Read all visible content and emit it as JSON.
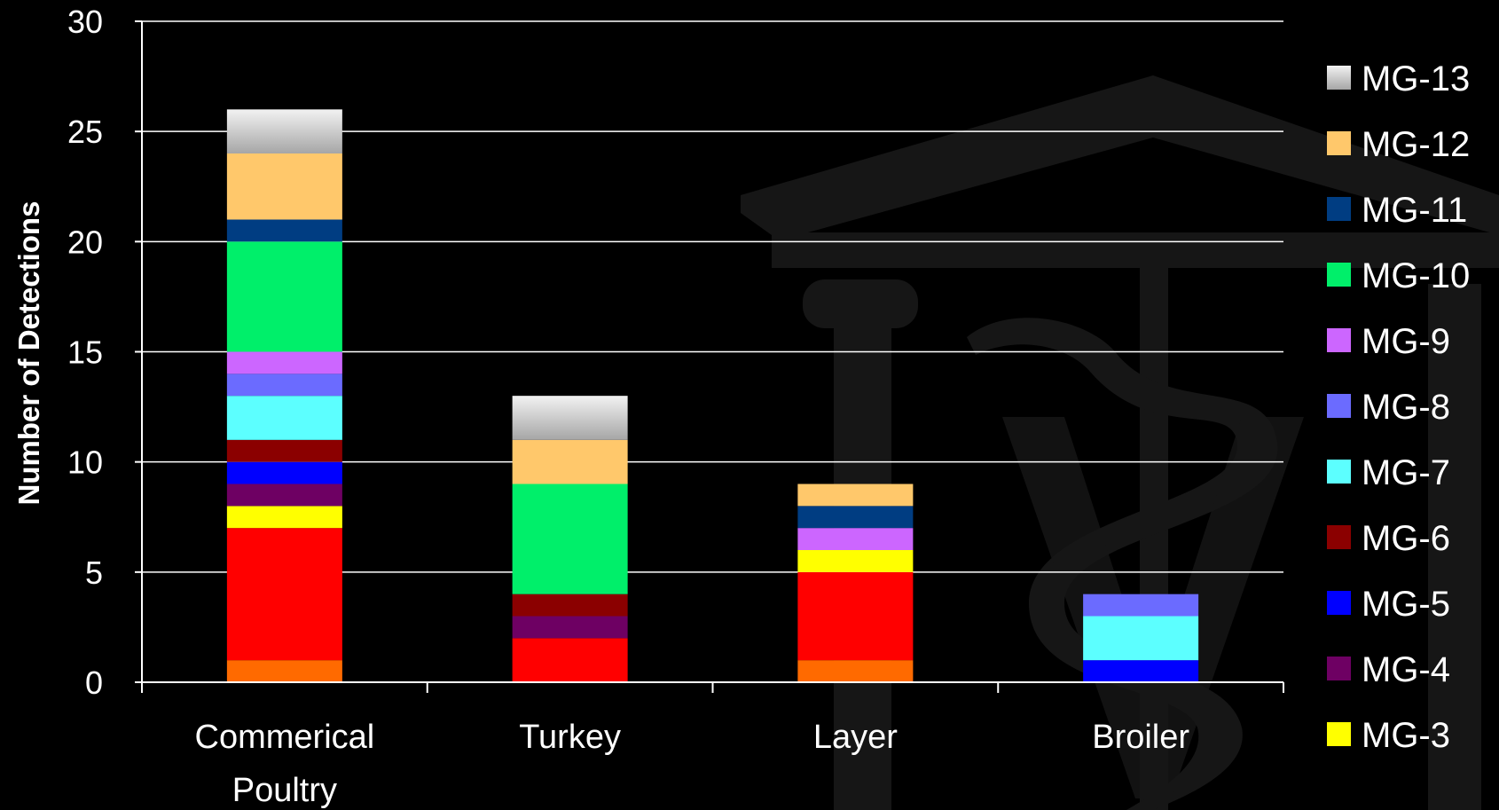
{
  "chart_data": {
    "type": "bar",
    "stacked": true,
    "title": "",
    "xlabel": "",
    "ylabel": "Number of Detections",
    "ylim": [
      0,
      30
    ],
    "yticks": [
      0,
      5,
      10,
      15,
      20,
      25,
      30
    ],
    "grid": true,
    "legend_position": "right",
    "categories": [
      "Commerical Poultry",
      "Turkey",
      "Layer",
      "Broiler"
    ],
    "series": [
      {
        "values": [
          1,
          0,
          1,
          0
        ],
        "color": "#ff6a00"
      },
      {
        "values": [
          6,
          2,
          4,
          0
        ],
        "color": "#ff0000"
      },
      {
        "name": "MG-3",
        "values": [
          1,
          0,
          1,
          0
        ],
        "color": "#ffff00"
      },
      {
        "name": "MG-4",
        "values": [
          1,
          1,
          0,
          0
        ],
        "color": "#6e0063"
      },
      {
        "name": "MG-5",
        "values": [
          1,
          0,
          0,
          1
        ],
        "color": "#0000ff"
      },
      {
        "name": "MG-6",
        "values": [
          1,
          1,
          0,
          0
        ],
        "color": "#8b0000"
      },
      {
        "name": "MG-7",
        "values": [
          2,
          0,
          0,
          2
        ],
        "color": "#5cffff"
      },
      {
        "name": "MG-8",
        "values": [
          1,
          0,
          0,
          1
        ],
        "color": "#6b6bff"
      },
      {
        "name": "MG-9",
        "values": [
          1,
          0,
          1,
          0
        ],
        "color": "#cc66ff"
      },
      {
        "name": "MG-10",
        "values": [
          5,
          5,
          0,
          0
        ],
        "color": "#00ef6a"
      },
      {
        "name": "MG-11",
        "values": [
          1,
          0,
          1,
          0
        ],
        "color": "#003d82"
      },
      {
        "name": "MG-12",
        "values": [
          3,
          2,
          1,
          0
        ],
        "color": "#ffc86b"
      },
      {
        "name": "MG-13",
        "values": [
          2,
          2,
          0,
          0
        ],
        "color": "#d9d9d9"
      }
    ],
    "legend_order": [
      "MG-13",
      "MG-12",
      "MG-11",
      "MG-10",
      "MG-9",
      "MG-8",
      "MG-7",
      "MG-6",
      "MG-5",
      "MG-4",
      "MG-3"
    ],
    "colors": {
      "background": "#000000",
      "text": "#ffffff",
      "gridline": "#ffffff",
      "watermark": "#161616"
    }
  }
}
